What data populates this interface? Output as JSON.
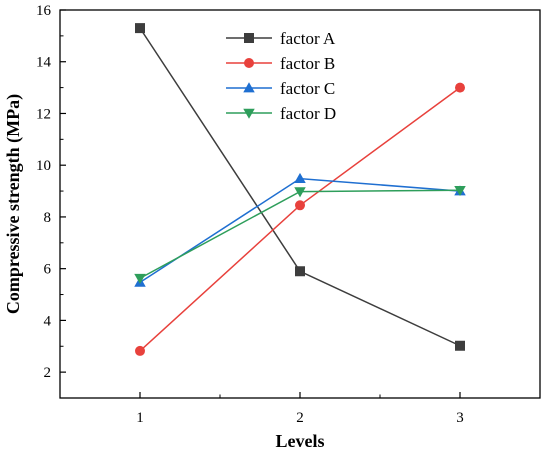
{
  "chart_data": {
    "type": "line",
    "title": "",
    "xlabel": "Levels",
    "ylabel": "Compressive strength (MPa)",
    "x": [
      1,
      2,
      3
    ],
    "xlim": [
      0.5,
      3.5
    ],
    "ylim": [
      1,
      16
    ],
    "xticks": [
      1,
      2,
      3
    ],
    "yticks": [
      2,
      4,
      6,
      8,
      10,
      12,
      14,
      16
    ],
    "grid": false,
    "legend": {
      "placement": "top-center"
    },
    "series": [
      {
        "name": "factor A",
        "values": [
          15.3,
          5.9,
          3.02
        ],
        "color": "#3d3d3d",
        "marker": "square"
      },
      {
        "name": "factor B",
        "values": [
          2.82,
          8.45,
          13.0
        ],
        "color": "#e8413c",
        "marker": "circle"
      },
      {
        "name": "factor C",
        "values": [
          5.47,
          9.48,
          9.0
        ],
        "color": "#1f6fd1",
        "marker": "triangle-up"
      },
      {
        "name": "factor D",
        "values": [
          5.63,
          8.98,
          9.03
        ],
        "color": "#2e9e5b",
        "marker": "triangle-down"
      }
    ]
  }
}
